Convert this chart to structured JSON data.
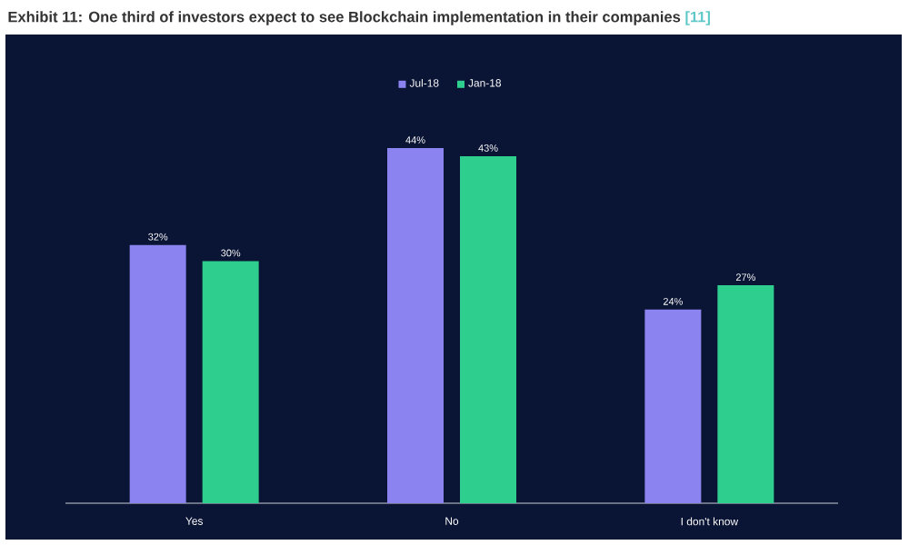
{
  "chart_data": {
    "type": "bar",
    "title": "Exhibit 11: One third of investors expect to see Blockchain implementation in their companies",
    "annotations": [
      "[11]"
    ],
    "categories": [
      "Yes",
      "No",
      "I don't know"
    ],
    "series": [
      {
        "name": "Jul-18",
        "color": "#8b84f0",
        "values": [
          32,
          44,
          24
        ],
        "value_labels": [
          "32%",
          "44%",
          "24%"
        ]
      },
      {
        "name": "Jan-18",
        "color": "#2ecf8e",
        "values": [
          30,
          43,
          27
        ],
        "value_labels": [
          "30%",
          "43%",
          "27%"
        ]
      }
    ],
    "legend": "top"
  }
}
